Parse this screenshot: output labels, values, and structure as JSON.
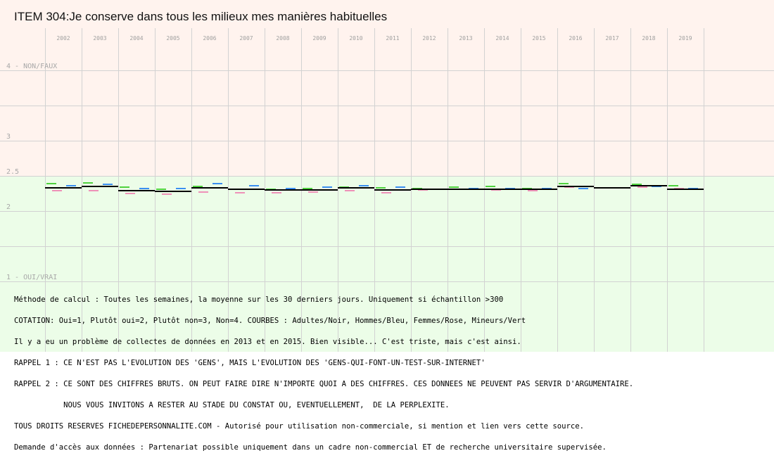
{
  "chart_data": {
    "type": "line",
    "title": "ITEM 304:Je conserve dans tous les milieux mes manières habituelles",
    "y_ticks": [
      {
        "value": 4,
        "label": "4 - NON/FAUX"
      },
      {
        "value": 3,
        "label": "3"
      },
      {
        "value": 2.5,
        "label": "2.5"
      },
      {
        "value": 2,
        "label": "2"
      },
      {
        "value": 1,
        "label": "1 - OUI/VRAI"
      }
    ],
    "ylim": [
      1,
      4
    ],
    "x": [
      "2002",
      "2003",
      "2004",
      "2005",
      "2006",
      "2007",
      "2008",
      "2009",
      "2010",
      "2011",
      "2012",
      "2013",
      "2014",
      "2015",
      "2016",
      "2017",
      "2018",
      "2019"
    ],
    "series": [
      {
        "name": "Adultes",
        "color": "#000000",
        "values": [
          2.33,
          2.35,
          2.29,
          2.28,
          2.33,
          2.31,
          2.3,
          2.3,
          2.33,
          2.3,
          2.31,
          2.31,
          2.31,
          2.31,
          2.35,
          2.33,
          2.36,
          2.31
        ]
      },
      {
        "name": "Hommes",
        "color": "#3a8ef0",
        "values": [
          2.36,
          2.38,
          2.32,
          2.32,
          2.39,
          2.36,
          2.32,
          2.34,
          2.36,
          2.34,
          2.31,
          2.32,
          2.32,
          2.32,
          2.32,
          2.33,
          2.35,
          2.32
        ]
      },
      {
        "name": "Femmes",
        "color": "#ee6fa8",
        "values": [
          2.29,
          2.29,
          2.25,
          2.24,
          2.27,
          2.26,
          2.26,
          2.27,
          2.29,
          2.26,
          2.3,
          2.31,
          2.3,
          2.29,
          2.34,
          2.33,
          2.34,
          2.32
        ]
      },
      {
        "name": "Mineurs",
        "color": "#4fd13e",
        "values": [
          2.39,
          2.4,
          2.34,
          2.31,
          2.35,
          2.31,
          2.31,
          2.32,
          2.34,
          2.33,
          2.32,
          2.34,
          2.35,
          2.32,
          2.39,
          2.33,
          2.38,
          2.36
        ]
      }
    ],
    "background_bands": [
      {
        "from": 1,
        "to": 2.5,
        "color": "#ecfde8"
      },
      {
        "from": 2.5,
        "to": 4,
        "color": "#fff3ee"
      }
    ],
    "grid": true
  },
  "notes": [
    "Méthode de calcul : Toutes les semaines, la moyenne sur les 30 derniers jours. Uniquement si échantillon >300",
    "COTATION: Oui=1, Plutôt oui=2, Plutôt non=3, Non=4. COURBES : Adultes/Noir, Hommes/Bleu, Femmes/Rose, Mineurs/Vert",
    "Il y a eu un problème de collectes de données en 2013 et en 2015. Bien visible... C'est triste, mais c'est ainsi.",
    "RAPPEL 1 : CE N'EST PAS L'EVOLUTION DES 'GENS', MAIS L'EVOLUTION DES 'GENS-QUI-FONT-UN-TEST-SUR-INTERNET'",
    "RAPPEL 2 : CE SONT DES CHIFFRES BRUTS. ON PEUT FAIRE DIRE N'IMPORTE QUOI A DES CHIFFRES. CES DONNEES NE PEUVENT PAS SERVIR D'ARGUMENTAIRE.",
    "           NOUS VOUS INVITONS A RESTER AU STADE DU CONSTAT OU, EVENTUELLEMENT,  DE LA PERPLEXITE.",
    "TOUS DROITS RESERVES FICHEDEPERSONNALITE.COM - Autorisé pour utilisation non-commerciale, si mention et lien vers cette source.",
    "Demande d'accès aux données : Partenariat possible uniquement dans un cadre non-commercial ET de recherche universitaire supervisée."
  ]
}
